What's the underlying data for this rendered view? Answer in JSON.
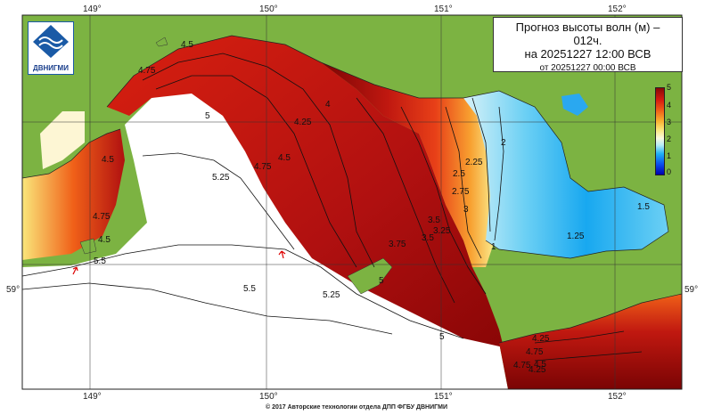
{
  "title": {
    "line1": "Прогноз высоты волн (м) –",
    "line2": "012ч.",
    "line3": "на 20251227 12:00 ВСВ",
    "line4": "от 20251227 00:00 ВСВ"
  },
  "logo": {
    "text": "ДВНИГМИ"
  },
  "axes": {
    "lon_top": [
      "149°",
      "150°",
      "151°",
      "152°"
    ],
    "lon_bottom": [
      "149°",
      "150°",
      "151°",
      "152°"
    ],
    "lat_left": "59°",
    "lat_right": "59°"
  },
  "colorbar": {
    "labels": [
      "5",
      "4",
      "3",
      "2",
      "1",
      "0"
    ],
    "colors": [
      "#8a0606",
      "#d81c10",
      "#f06018",
      "#f8b030",
      "#fae67a",
      "#b8ecf6",
      "#1fb0f5",
      "#0000b0"
    ]
  },
  "contour_labels": [
    "4.5",
    "4.75",
    "5",
    "4.25",
    "4",
    "4.5",
    "4.75",
    "4.5",
    "3.5",
    "2",
    "2.25",
    "2.5",
    "2.75",
    "3",
    "3.25",
    "3.5",
    "3.75",
    "1.5",
    "1.25",
    "1",
    "5.25",
    "5.5",
    "5.5",
    "5.25",
    "5",
    "4.75",
    "4.5",
    "4.25",
    "4.75",
    "4.25",
    "4.5",
    "4.75",
    "5"
  ],
  "colors": {
    "land": "#7cb342",
    "sea_low": "#ffffff",
    "deep_red": "#8a0606"
  },
  "footer": "© 2017 Авторские технологии отдела ДПП ФГБУ ДВНИГМИ"
}
